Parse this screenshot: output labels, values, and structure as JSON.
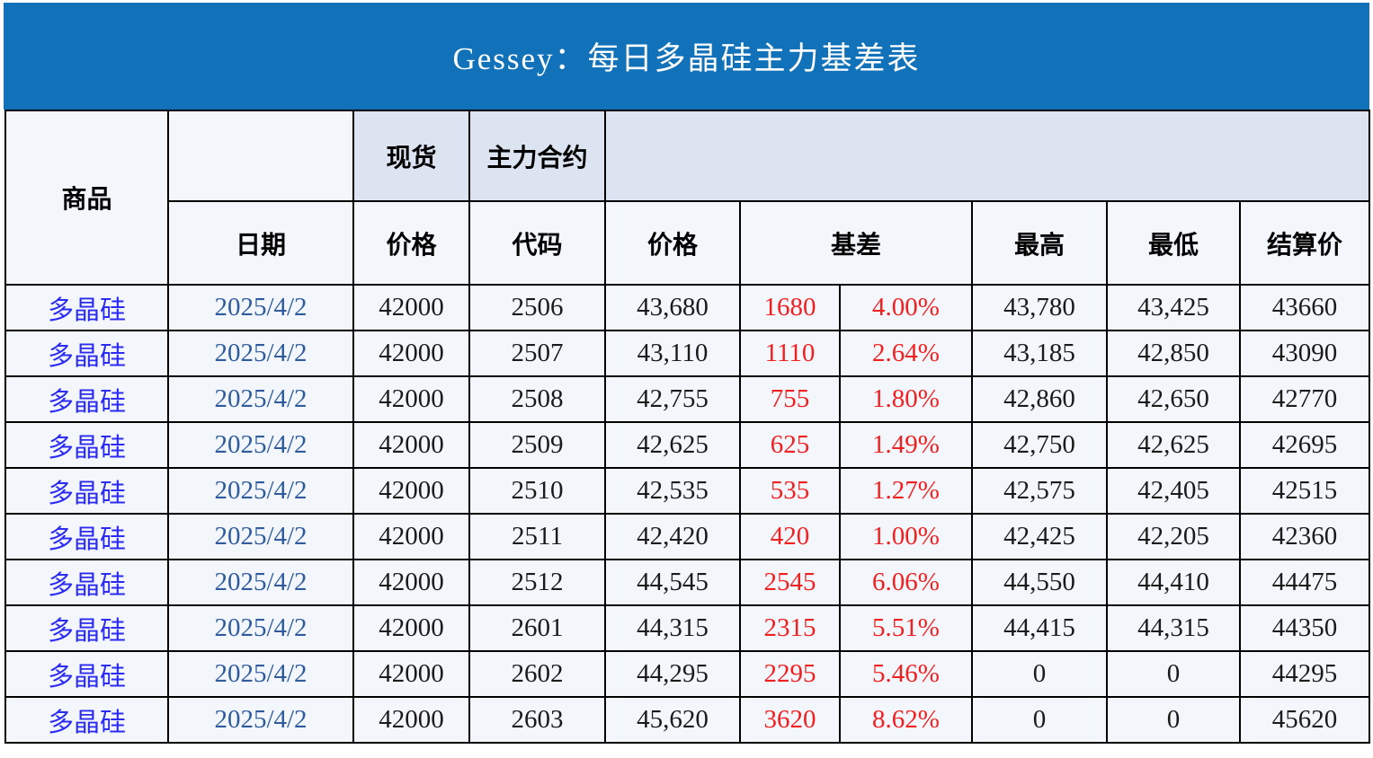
{
  "title": "Gessey：每日多晶硅主力基差表",
  "colors": {
    "title_bar_blue": "#1172BA",
    "header_band_fill": "#dce4f2",
    "cell_fill": "#f3f7fc",
    "commodity_text_blue": "#2b2bf2",
    "date_text_blue": "#2f5b9d",
    "basis_text_red": "#f02020",
    "grid_line": "#000000"
  },
  "table": {
    "headers": {
      "commodity": "商品",
      "date": "日期",
      "spot_group": "现货",
      "main_contract_group": "主力合约",
      "spot_price": "价格",
      "code": "代码",
      "price": "价格",
      "basis": "基差",
      "high": "最高",
      "low": "最低",
      "settlement": "结算价"
    },
    "rows": [
      {
        "commodity": "多晶硅",
        "date": "2025/4/2",
        "spot_price": "42000",
        "code": "2506",
        "price": "43,680",
        "basis": "1680",
        "basis_pct": "4.00%",
        "high": "43,780",
        "low": "43,425",
        "settlement": "43660"
      },
      {
        "commodity": "多晶硅",
        "date": "2025/4/2",
        "spot_price": "42000",
        "code": "2507",
        "price": "43,110",
        "basis": "1110",
        "basis_pct": "2.64%",
        "high": "43,185",
        "low": "42,850",
        "settlement": "43090"
      },
      {
        "commodity": "多晶硅",
        "date": "2025/4/2",
        "spot_price": "42000",
        "code": "2508",
        "price": "42,755",
        "basis": "755",
        "basis_pct": "1.80%",
        "high": "42,860",
        "low": "42,650",
        "settlement": "42770"
      },
      {
        "commodity": "多晶硅",
        "date": "2025/4/2",
        "spot_price": "42000",
        "code": "2509",
        "price": "42,625",
        "basis": "625",
        "basis_pct": "1.49%",
        "high": "42,750",
        "low": "42,625",
        "settlement": "42695"
      },
      {
        "commodity": "多晶硅",
        "date": "2025/4/2",
        "spot_price": "42000",
        "code": "2510",
        "price": "42,535",
        "basis": "535",
        "basis_pct": "1.27%",
        "high": "42,575",
        "low": "42,405",
        "settlement": "42515"
      },
      {
        "commodity": "多晶硅",
        "date": "2025/4/2",
        "spot_price": "42000",
        "code": "2511",
        "price": "42,420",
        "basis": "420",
        "basis_pct": "1.00%",
        "high": "42,425",
        "low": "42,205",
        "settlement": "42360"
      },
      {
        "commodity": "多晶硅",
        "date": "2025/4/2",
        "spot_price": "42000",
        "code": "2512",
        "price": "44,545",
        "basis": "2545",
        "basis_pct": "6.06%",
        "high": "44,550",
        "low": "44,410",
        "settlement": "44475"
      },
      {
        "commodity": "多晶硅",
        "date": "2025/4/2",
        "spot_price": "42000",
        "code": "2601",
        "price": "44,315",
        "basis": "2315",
        "basis_pct": "5.51%",
        "high": "44,415",
        "low": "44,315",
        "settlement": "44350"
      },
      {
        "commodity": "多晶硅",
        "date": "2025/4/2",
        "spot_price": "42000",
        "code": "2602",
        "price": "44,295",
        "basis": "2295",
        "basis_pct": "5.46%",
        "high": "0",
        "low": "0",
        "settlement": "44295"
      },
      {
        "commodity": "多晶硅",
        "date": "2025/4/2",
        "spot_price": "42000",
        "code": "2603",
        "price": "45,620",
        "basis": "3620",
        "basis_pct": "8.62%",
        "high": "0",
        "low": "0",
        "settlement": "45620"
      }
    ]
  }
}
